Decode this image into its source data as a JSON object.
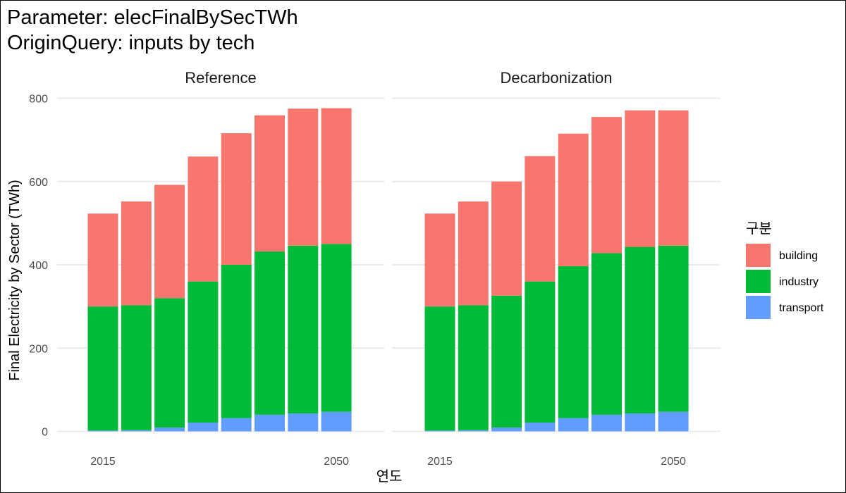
{
  "chart_data": {
    "type": "bar",
    "stacked": true,
    "title_lines": [
      "Parameter: elecFinalBySecTWh",
      "OriginQuery: inputs by tech"
    ],
    "xlabel": "연도",
    "ylabel": "Final Electricity by Sector (TWh)",
    "ylim": [
      0,
      800
    ],
    "yticks": [
      0,
      200,
      400,
      600,
      800
    ],
    "x": [
      2015,
      2020,
      2025,
      2030,
      2035,
      2040,
      2045,
      2050
    ],
    "xtick_labels": [
      {
        "x": 2015,
        "label": "2015"
      },
      {
        "x": 2050,
        "label": "2050"
      }
    ],
    "grid": true,
    "legend": {
      "title": "구분",
      "position": "right",
      "entries": [
        {
          "name": "building",
          "color": "#F8766D"
        },
        {
          "name": "industry",
          "color": "#00BA38"
        },
        {
          "name": "transport",
          "color": "#619CFF"
        }
      ]
    },
    "panels": [
      {
        "name": "Reference",
        "series": [
          {
            "name": "transport",
            "values": [
              2,
              3,
              9,
              21,
              32,
              40,
              43,
              47
            ]
          },
          {
            "name": "industry",
            "values": [
              298,
              300,
              311,
              339,
              368,
              392,
              403,
              403
            ]
          },
          {
            "name": "building",
            "values": [
              223,
              249,
              272,
              300,
              316,
              327,
              329,
              326
            ]
          }
        ]
      },
      {
        "name": "Decarbonization",
        "series": [
          {
            "name": "transport",
            "values": [
              2,
              3,
              9,
              21,
              32,
              40,
              43,
              47
            ]
          },
          {
            "name": "industry",
            "values": [
              298,
              300,
              317,
              339,
              365,
              388,
              400,
              399
            ]
          },
          {
            "name": "building",
            "values": [
              223,
              249,
              274,
              301,
              318,
              327,
              328,
              325
            ]
          }
        ]
      }
    ]
  }
}
